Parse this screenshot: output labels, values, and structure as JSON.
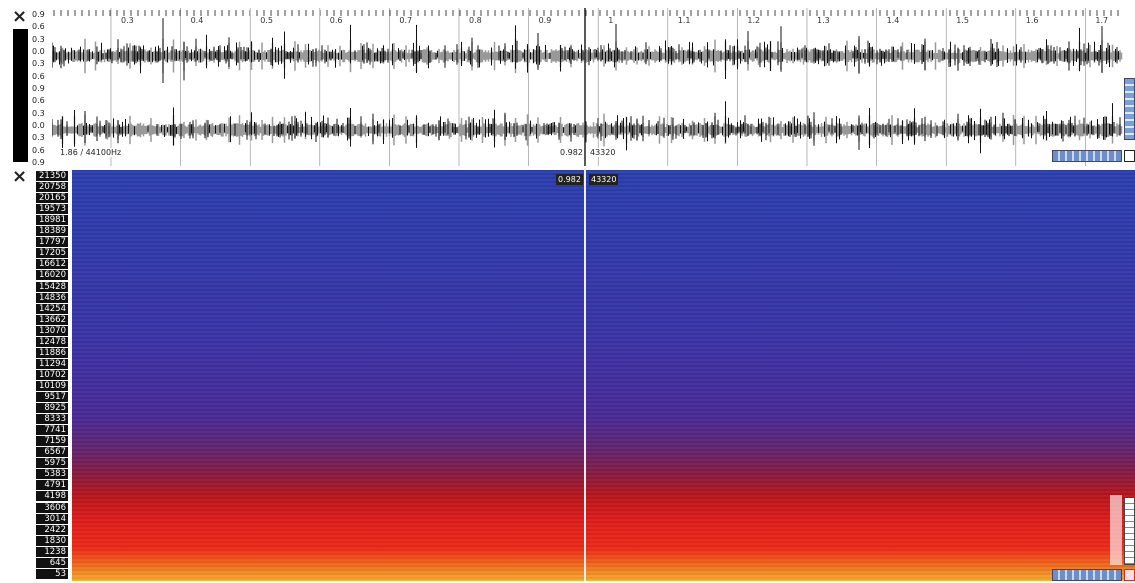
{
  "waveform": {
    "close": "×",
    "time_labels": [
      "0.3",
      "0.4",
      "0.5",
      "0.6",
      "0.7",
      "0.8",
      "0.9",
      "1",
      "1.1",
      "1.2",
      "1.3",
      "1.4",
      "1.5",
      "1.6",
      "1.7"
    ],
    "amplitude_labels": [
      "0.9",
      "0.6",
      "0.3",
      "0.0",
      "0.3",
      "0.6",
      "0.9",
      "0.6",
      "0.3",
      "0.0",
      "0.3",
      "0.6",
      "0.9"
    ],
    "status": "1.86 / 44100Hz",
    "cursor_time": "0.982",
    "cursor_sample": "43320"
  },
  "spectrogram": {
    "close": "×",
    "frequency_labels": [
      "21350",
      "20758",
      "20165",
      "19573",
      "18981",
      "18389",
      "17797",
      "17205",
      "16612",
      "16020",
      "15428",
      "14836",
      "14254",
      "13662",
      "13070",
      "12478",
      "11886",
      "11294",
      "10702",
      "10109",
      "9517",
      "8925",
      "8333",
      "7741",
      "7159",
      "6567",
      "5975",
      "5383",
      "4791",
      "4198",
      "3606",
      "3014",
      "2422",
      "1830",
      "1238",
      "645",
      "53"
    ],
    "cursor_time": "0.982",
    "cursor_sample": "43320"
  }
}
